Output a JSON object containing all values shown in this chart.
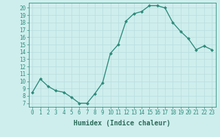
{
  "x": [
    0,
    1,
    2,
    3,
    4,
    5,
    6,
    7,
    8,
    9,
    10,
    11,
    12,
    13,
    14,
    15,
    16,
    17,
    18,
    19,
    20,
    21,
    22,
    23
  ],
  "y": [
    8.5,
    10.3,
    9.3,
    8.7,
    8.5,
    7.8,
    7.0,
    7.0,
    8.3,
    9.8,
    13.8,
    15.0,
    18.2,
    19.2,
    19.5,
    20.3,
    20.3,
    20.0,
    18.0,
    16.8,
    15.8,
    14.3,
    14.8,
    14.3
  ],
  "line_color": "#2d8b7a",
  "marker": "D",
  "marker_size": 2.0,
  "line_width": 1.0,
  "bg_color": "#ceeeed",
  "grid_color_major": "#b8dcdc",
  "grid_color_minor": "#d8eeed",
  "xlabel": "Humidex (Indice chaleur)",
  "xlim": [
    -0.5,
    23.5
  ],
  "ylim": [
    6.5,
    20.7
  ],
  "yticks": [
    7,
    8,
    9,
    10,
    11,
    12,
    13,
    14,
    15,
    16,
    17,
    18,
    19,
    20
  ],
  "xtick_labels": [
    "0",
    "1",
    "2",
    "3",
    "4",
    "5",
    "6",
    "7",
    "8",
    "9",
    "10",
    "11",
    "12",
    "13",
    "14",
    "15",
    "16",
    "17",
    "18",
    "19",
    "20",
    "21",
    "22",
    "23"
  ],
  "tick_color": "#2d8b7a",
  "font_color": "#2d6b5a",
  "font_size": 5.5,
  "xlabel_font_size": 7.0
}
